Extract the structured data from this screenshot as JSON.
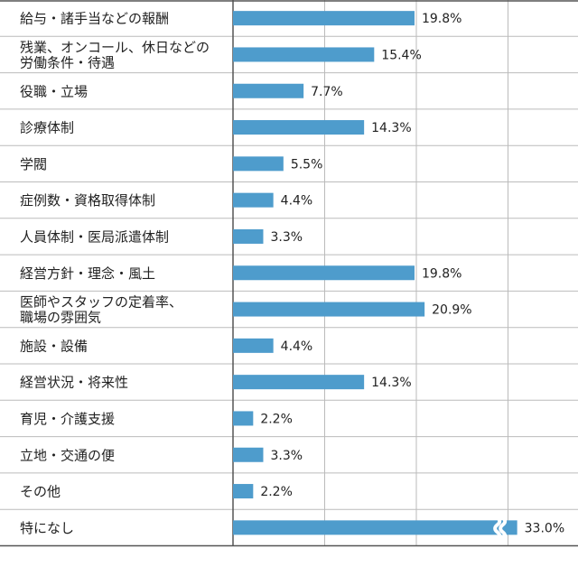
{
  "chart_data": {
    "type": "bar",
    "orientation": "horizontal",
    "categories": [
      [
        "給与・諸手当などの報酬"
      ],
      [
        "残業、オンコール、休日などの",
        "労働条件・待遇"
      ],
      [
        "役職・立場"
      ],
      [
        "診療体制"
      ],
      [
        "学閥"
      ],
      [
        "症例数・資格取得体制"
      ],
      [
        "人員体制・医局派遣体制"
      ],
      [
        "経営方針・理念・風土"
      ],
      [
        "医師やスタッフの定着率、",
        "職場の雰囲気"
      ],
      [
        "施設・設備"
      ],
      [
        "経営状況・将来性"
      ],
      [
        "育児・介護支援"
      ],
      [
        "立地・交通の便"
      ],
      [
        "その他"
      ],
      [
        "特になし"
      ]
    ],
    "values": [
      19.8,
      15.4,
      7.7,
      14.3,
      5.5,
      4.4,
      3.3,
      19.8,
      20.9,
      4.4,
      14.3,
      2.2,
      3.3,
      2.2,
      33.0
    ],
    "value_labels": [
      "19.8%",
      "15.4%",
      "7.7%",
      "14.3%",
      "5.5%",
      "4.4%",
      "3.3%",
      "19.8%",
      "20.9%",
      "4.4%",
      "14.3%",
      "2.2%",
      "3.3%",
      "2.2%",
      "33.0%"
    ],
    "xlim": [
      0,
      40
    ],
    "axis_break_value": 31,
    "grid": true,
    "bar_color": "#4e9ccc",
    "grid_color": "#bbbbbb",
    "border_color": "#555555"
  }
}
